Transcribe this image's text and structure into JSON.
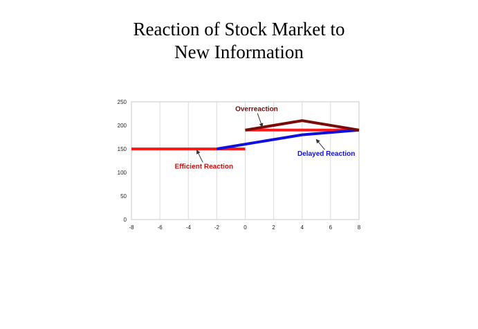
{
  "slide": {
    "title_line1": "Reaction of Stock Market to",
    "title_line2": "New Information"
  },
  "chart_data": {
    "type": "line",
    "title": "",
    "xlabel": "",
    "ylabel": "",
    "xlim": [
      -8,
      8
    ],
    "ylim": [
      0,
      250
    ],
    "x_ticks": [
      -8,
      -6,
      -4,
      -2,
      0,
      2,
      4,
      6,
      8
    ],
    "y_ticks": [
      0,
      50,
      100,
      150,
      200,
      250
    ],
    "grid": "vertical",
    "series": [
      {
        "color": "#ff1a1a",
        "points": [
          [
            -8,
            150
          ],
          [
            0,
            150
          ]
        ]
      },
      {
        "color": "#ff1a1a",
        "points": [
          [
            0,
            190
          ],
          [
            8,
            190
          ]
        ]
      },
      {
        "color": "#1111dd",
        "points": [
          [
            -2,
            150
          ],
          [
            4,
            180
          ],
          [
            8,
            190
          ]
        ]
      },
      {
        "color": "#7a0a0a",
        "points": [
          [
            0,
            190
          ],
          [
            4,
            210
          ],
          [
            8,
            190
          ]
        ]
      }
    ],
    "annotations": [
      {
        "label": "Overreaction",
        "color": "#7a0a0a",
        "x": 0.8,
        "y": 230,
        "arrow_to": [
          1.2,
          197
        ]
      },
      {
        "label": "Delayed Reaction",
        "color": "#1111dd",
        "x": 5.7,
        "y": 135,
        "arrow_to": [
          5.0,
          170
        ]
      },
      {
        "label": "Efficient Reaction",
        "color": "#cc1111",
        "x": -2.9,
        "y": 108,
        "arrow_to": [
          -3.4,
          147
        ]
      }
    ]
  }
}
